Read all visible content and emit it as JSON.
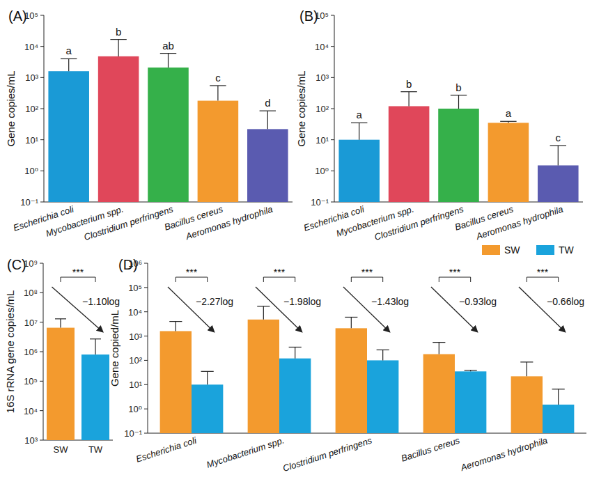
{
  "chart_data": [
    {
      "type": "bar",
      "title": "(A)",
      "y_label": "Gene copies/mL",
      "log": "y",
      "categories": [
        "Escherichia coli",
        "Mycobacterium spp.",
        "Clostridium perfringens",
        "Bacillus cereus",
        "Aeromonas hydrophila"
      ],
      "values": [
        1600,
        4800,
        2100,
        180,
        22
      ],
      "errors": [
        2400,
        12000,
        3900,
        370,
        63
      ],
      "annotations": [
        "a",
        "b",
        "ab",
        "c",
        "d"
      ],
      "colors": [
        "#1a9ad6",
        "#e0475a",
        "#35b04a",
        "#f39a2e",
        "#5a5bb0"
      ],
      "ylim": [
        0.1,
        100000
      ],
      "yticks": [
        {
          "value": 0.1,
          "label": "10⁻¹"
        },
        {
          "value": 1,
          "label": "10⁰"
        },
        {
          "value": 10,
          "label": "10¹"
        },
        {
          "value": 100,
          "label": "10²"
        },
        {
          "value": 1000,
          "label": "10³"
        },
        {
          "value": 10000,
          "label": "10⁴"
        },
        {
          "value": 100000,
          "label": "10⁵"
        }
      ]
    },
    {
      "type": "bar",
      "title": "(B)",
      "y_label": "Gene copies/mL",
      "log": "y",
      "categories": [
        "Escherichia coli",
        "Mycobacterium spp.",
        "Clostridium perfringens",
        "Bacillus cereus",
        "Aeromonas hydrophila"
      ],
      "values": [
        10,
        120,
        100,
        35,
        1.5
      ],
      "errors": [
        25,
        230,
        170,
        4,
        5
      ],
      "annotations": [
        "a",
        "b",
        "b",
        "a",
        "c"
      ],
      "colors": [
        "#1a9ad6",
        "#e0475a",
        "#35b04a",
        "#f39a2e",
        "#5a5bb0"
      ],
      "ylim": [
        0.1,
        100000
      ],
      "yticks": [
        {
          "value": 0.1,
          "label": "10⁻¹"
        },
        {
          "value": 1,
          "label": "10⁰"
        },
        {
          "value": 10,
          "label": "10¹"
        },
        {
          "value": 100,
          "label": "10²"
        },
        {
          "value": 1000,
          "label": "10³"
        },
        {
          "value": 10000,
          "label": "10⁴"
        },
        {
          "value": 100000,
          "label": "10⁵"
        }
      ]
    },
    {
      "type": "bar",
      "title": "(C)",
      "y_label": "16S rRNA gene copies/mL",
      "log": "y",
      "categories": [
        "SW",
        "TW"
      ],
      "values": [
        6500000,
        800000
      ],
      "errors": [
        6500000,
        1900000
      ],
      "colors": [
        "#f39a2e",
        "#1aa3dc"
      ],
      "significance": [
        "***"
      ],
      "log_changes": [
        "−1.10log"
      ],
      "ylim": [
        1000,
        1000000000
      ],
      "yticks": [
        {
          "value": 1000,
          "label": "10³"
        },
        {
          "value": 10000,
          "label": "10⁴"
        },
        {
          "value": 100000,
          "label": "10⁵"
        },
        {
          "value": 1000000,
          "label": "10⁶"
        },
        {
          "value": 10000000,
          "label": "10⁷"
        },
        {
          "value": 100000000,
          "label": "10⁸"
        },
        {
          "value": 1000000000,
          "label": "10⁹"
        }
      ]
    },
    {
      "type": "bar",
      "title": "(D)",
      "y_label": "Gene copied/mL",
      "log": "y",
      "legend": "top-right",
      "categories": [
        "Escherichia coli",
        "Mycobacterium spp.",
        "Clostridium perfringens",
        "Bacillus cereus",
        "Aeromonas hydrophila"
      ],
      "series": [
        {
          "name": "SW",
          "color": "#f39a2e",
          "values": [
            1600,
            4800,
            2100,
            180,
            22
          ],
          "errors": [
            2400,
            12000,
            3900,
            370,
            63
          ]
        },
        {
          "name": "TW",
          "color": "#1aa3dc",
          "values": [
            10,
            120,
            100,
            35,
            1.5
          ],
          "errors": [
            25,
            230,
            170,
            4,
            5
          ]
        }
      ],
      "significance": [
        "***",
        "***",
        "***",
        "***",
        "***"
      ],
      "log_changes": [
        "−2.27log",
        "−1.98log",
        "−1.43log",
        "−0.93log",
        "−0.66log"
      ],
      "ylim": [
        0.1,
        1000000
      ],
      "yticks": [
        {
          "value": 0.1,
          "label": "10⁻¹"
        },
        {
          "value": 1,
          "label": "10⁰"
        },
        {
          "value": 10,
          "label": "10¹"
        },
        {
          "value": 100,
          "label": "10²"
        },
        {
          "value": 1000,
          "label": "10³"
        },
        {
          "value": 10000,
          "label": "10⁴"
        },
        {
          "value": 100000,
          "label": "10⁵"
        },
        {
          "value": 1000000,
          "label": "10⁶"
        }
      ]
    }
  ]
}
